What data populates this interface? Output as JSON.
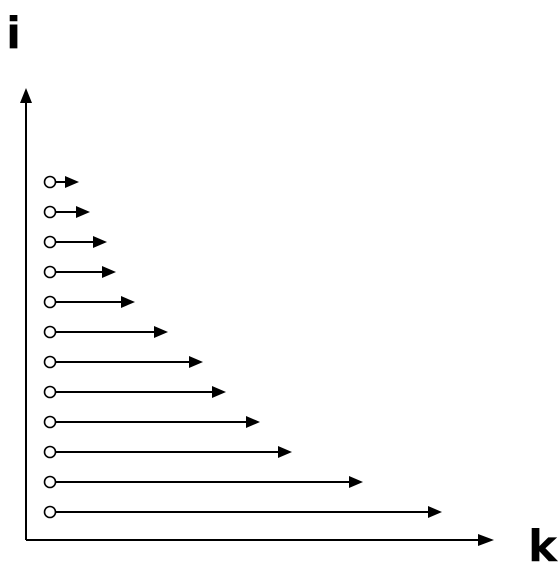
{
  "axes": {
    "vertical_label": "i",
    "horizontal_label": "k"
  },
  "rows": [
    {
      "length": 1
    },
    {
      "length": 2
    },
    {
      "length": 3
    },
    {
      "length": 4
    },
    {
      "length": 5
    },
    {
      "length": 6
    },
    {
      "length": 7
    },
    {
      "length": 8
    },
    {
      "length": 9
    },
    {
      "length": 10
    },
    {
      "length": 11
    },
    {
      "length": 12
    }
  ],
  "colors": {
    "stroke": "#000000",
    "background": "#ffffff"
  }
}
